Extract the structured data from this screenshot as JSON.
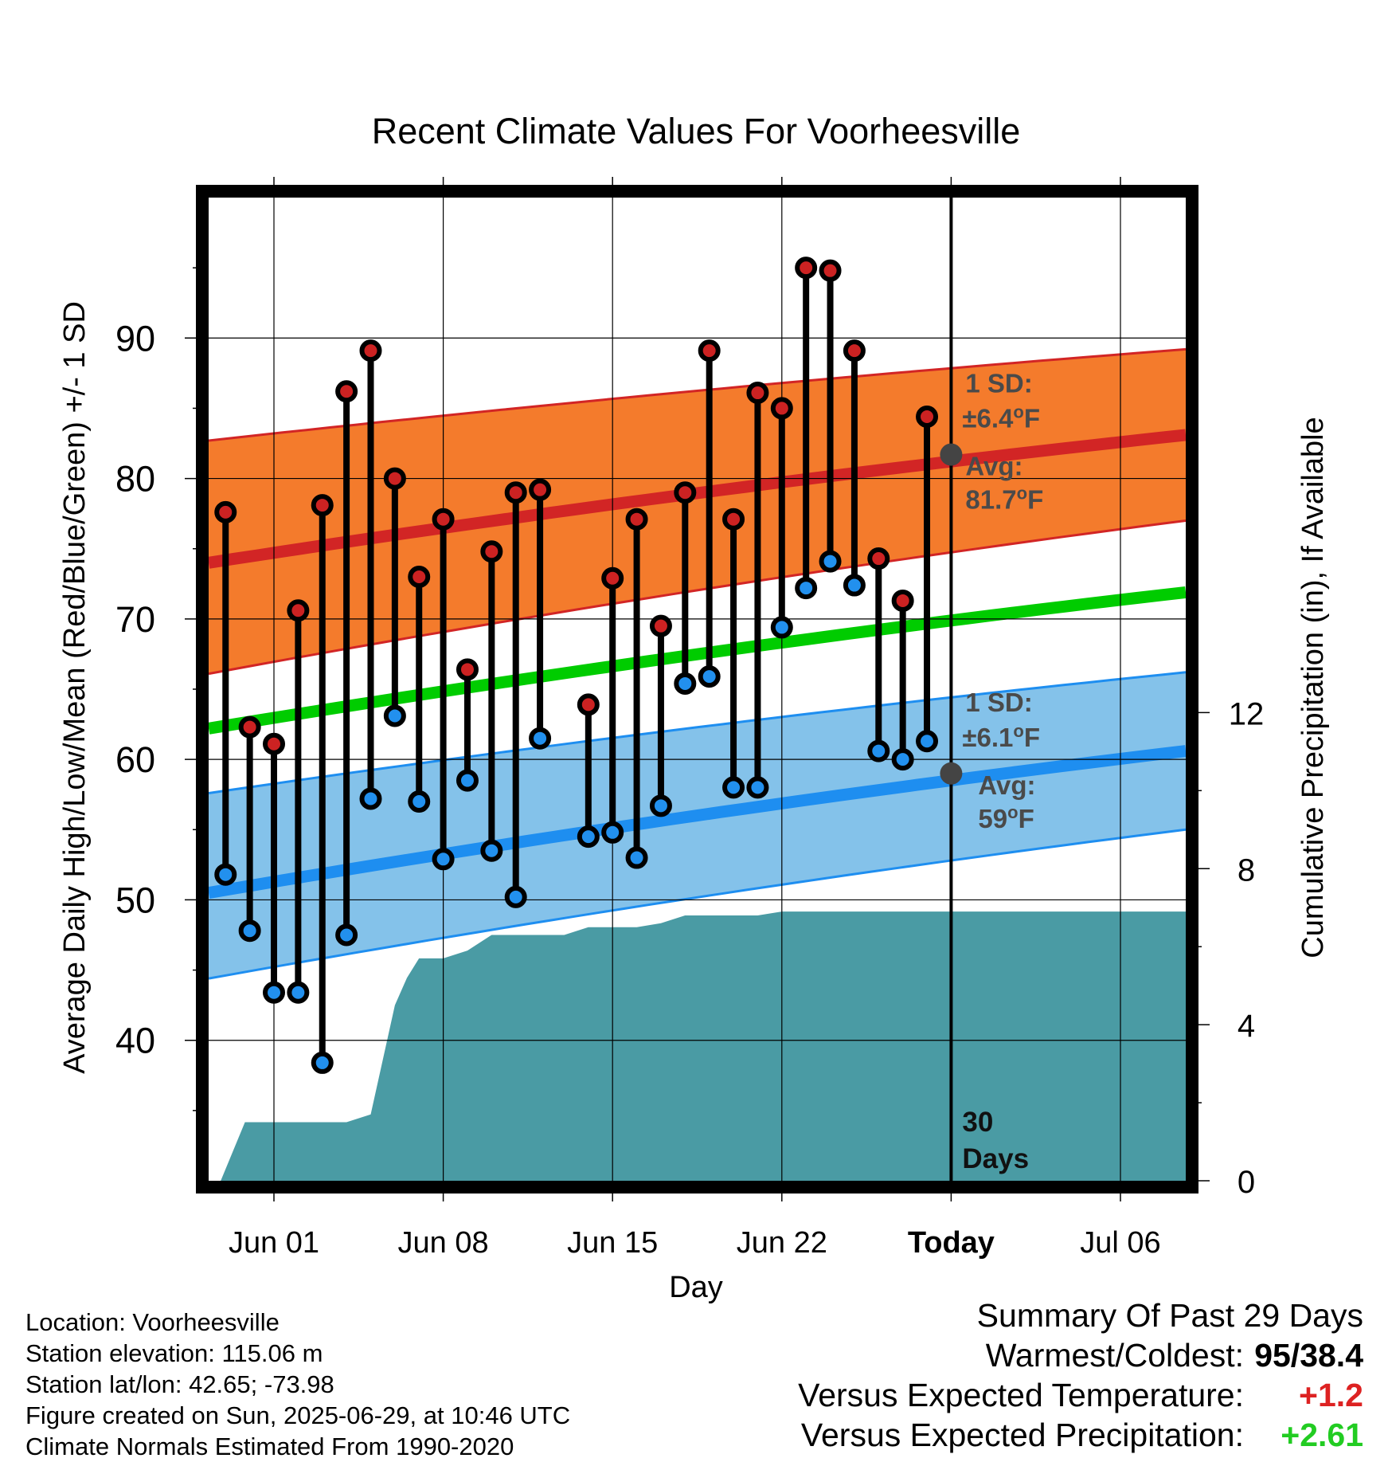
{
  "title": "Recent Climate Values For Voorheesville",
  "chart_data": {
    "type": "line",
    "title": "Recent Climate Values For Voorheesville",
    "xlabel": "Day",
    "ylabel": "Average Daily High/Low/Mean (Red/Blue/Green) +/- 1 SD",
    "y2label": "Cumulative Precipitation (in), If Available",
    "x_tick_labels": [
      "Jun 01",
      "Jun 08",
      "Jun 15",
      "Jun 22",
      "Today",
      "Jul 06"
    ],
    "x_tick_days": [
      1,
      8,
      15,
      22,
      29,
      36
    ],
    "x_range_days": [
      -1.7,
      38.7
    ],
    "ylim": [
      30,
      100
    ],
    "y_ticks": [
      40,
      50,
      60,
      70,
      80,
      90
    ],
    "y2lim": [
      0,
      25.2
    ],
    "y2_ticks": [
      0,
      4,
      8,
      12
    ],
    "grid": true,
    "days": [
      -1,
      0,
      1,
      2,
      3,
      4,
      5,
      6,
      7,
      8,
      9,
      10,
      11,
      12,
      14,
      15,
      16,
      17,
      18,
      19,
      20,
      21,
      22,
      23,
      24,
      25,
      26,
      27,
      28
    ],
    "high": [
      77.6,
      62.3,
      61.1,
      70.6,
      78.1,
      86.2,
      89.1,
      80.0,
      73.0,
      77.1,
      66.4,
      74.8,
      79.0,
      79.2,
      63.9,
      72.9,
      77.1,
      69.5,
      79.0,
      89.1,
      77.1,
      86.1,
      85.0,
      95.0,
      94.8,
      89.1,
      74.3,
      71.3,
      84.4
    ],
    "low": [
      51.8,
      47.8,
      43.4,
      43.4,
      38.4,
      47.5,
      57.2,
      63.1,
      57.0,
      52.9,
      58.5,
      53.5,
      50.2,
      61.5,
      54.5,
      54.8,
      53.0,
      56.7,
      65.4,
      65.9,
      58.0,
      58.0,
      69.4,
      72.2,
      74.1,
      72.4,
      60.6,
      60.0,
      61.3
    ],
    "normal_days": [
      -1.7,
      38.7
    ],
    "normal_high_avg": [
      74.0,
      83.1
    ],
    "normal_high_upper": [
      82.7,
      89.2
    ],
    "normal_high_lower": [
      66.1,
      77.0
    ],
    "normal_low_avg": [
      50.5,
      60.6
    ],
    "normal_low_upper": [
      57.6,
      66.2
    ],
    "normal_low_lower": [
      44.4,
      55.0
    ],
    "normal_mean_avg": [
      62.2,
      71.9
    ],
    "precip_days": [
      -1.2,
      -0.2,
      1,
      2,
      3,
      4,
      5,
      6,
      6.5,
      7,
      8,
      9,
      10,
      11,
      12,
      13,
      14,
      15,
      16,
      17,
      18,
      19,
      20,
      21,
      22,
      23,
      24,
      25,
      26,
      27,
      28,
      29,
      38.7
    ],
    "precip_cum": [
      0,
      1.5,
      1.5,
      1.5,
      1.5,
      1.5,
      1.7,
      4.5,
      5.2,
      5.7,
      5.7,
      5.9,
      6.3,
      6.3,
      6.3,
      6.3,
      6.5,
      6.5,
      6.5,
      6.6,
      6.8,
      6.8,
      6.8,
      6.8,
      6.9,
      6.9,
      6.9,
      6.9,
      6.9,
      6.9,
      6.9,
      6.9,
      6.9
    ],
    "today_day": 29,
    "today_high_avg": 81.7,
    "today_low_avg": 59.0,
    "annotations": {
      "high_sd_1": "1 SD:",
      "high_sd_2": "±6.4",
      "high_avg_1": "Avg:",
      "high_avg_2": "81.7",
      "low_sd_1": "1 SD:",
      "low_sd_2": "±6.1",
      "low_avg_1": "Avg:",
      "low_avg_2": "59",
      "degree_mark": "o",
      "unit_f": "F",
      "days_1": "30",
      "days_2": "Days"
    },
    "colors": {
      "high_band": "#f47b2c",
      "high_line": "#d22525",
      "low_band": "#84c2ea",
      "low_line": "#1e8ef0",
      "mean_line": "#00cc00",
      "precip": "#4a9ba4",
      "high_dot": "#cc2222",
      "low_dot": "#2290ee",
      "today_marker": "#444444",
      "annotation_text": "#4a4a4a"
    }
  },
  "footer": {
    "location": "Location: Voorheesville",
    "elevation": "Station elevation: 115.06 m",
    "latlon": "Station lat/lon: 42.65; -73.98",
    "created": "Figure created on Sun, 2025-06-29, at 10:46 UTC",
    "normals": "Climate Normals Estimated From 1990-2020"
  },
  "summary": {
    "title": "Summary Of Past 29 Days",
    "warmest_label": "Warmest/Coldest:",
    "warmest_value": "95/38.4",
    "temp_label": "Versus Expected Temperature:",
    "temp_value": "+1.2",
    "temp_color": "#dd2222",
    "precip_label": "Versus Expected Precipitation:",
    "precip_value": "+2.61",
    "precip_color": "#22cc22"
  }
}
